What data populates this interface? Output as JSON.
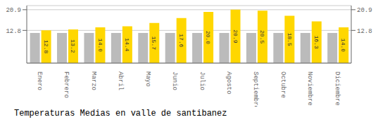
{
  "chart_data": {
    "type": "bar",
    "title": "Temperaturas Medias en valle de santibanez",
    "categories": [
      "Enero",
      "Febrero",
      "Marzo",
      "Abril",
      "Mayo",
      "Junio",
      "Julio",
      "Agosto",
      "Septiembre",
      "Octubre",
      "Noviembre",
      "Diciembre"
    ],
    "series": [
      {
        "color": "#BBBBBB",
        "values": [
          11.8,
          11.8,
          11.8,
          11.8,
          11.8,
          11.8,
          11.8,
          11.8,
          11.8,
          11.8,
          11.8,
          11.8
        ]
      },
      {
        "color": "#FFD700",
        "values": [
          12.8,
          13.2,
          14.0,
          14.4,
          15.7,
          17.6,
          20.0,
          20.9,
          20.5,
          18.5,
          16.3,
          14.0
        ],
        "value_labels": [
          "12.8",
          "13.2",
          "14.0",
          "14.4",
          "15.7",
          "17.6",
          "20.0",
          "20.9",
          "20.5",
          "18.5",
          "16.3",
          "14.0"
        ],
        "data_labels": true
      }
    ],
    "ylim": [
      0,
      22.5
    ],
    "yticks": [
      12.8,
      20.9
    ],
    "y2lim": [
      0,
      22.5
    ],
    "y2ticks": [
      12.8,
      20.9
    ],
    "grid": true
  }
}
